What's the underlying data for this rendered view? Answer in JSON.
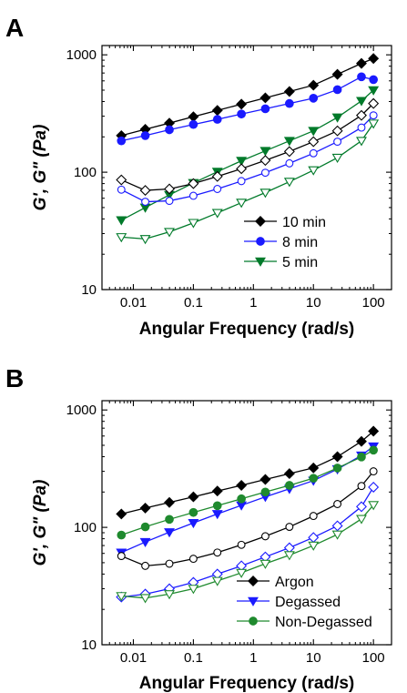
{
  "chart_data": [
    {
      "panel": "A",
      "type": "line",
      "xlabel": "Angular Frequency (rad/s)",
      "ylabel": "G', G\" (Pa)",
      "xscale": "log",
      "yscale": "log",
      "xlim": [
        0.003,
        200
      ],
      "ylim": [
        10,
        1200
      ],
      "xticks": [
        0.01,
        0.1,
        1,
        10,
        100
      ],
      "xtick_labels": [
        "0.01",
        "0.1",
        "1",
        "10",
        "100"
      ],
      "yticks": [
        10,
        100,
        1000
      ],
      "ytick_labels": [
        "10",
        "100",
        "1000"
      ],
      "grid": false,
      "legend_position": "lower-right",
      "series": [
        {
          "name": "10 min",
          "color": "#000000",
          "marker": "diamond",
          "kind": "G'",
          "filled": true,
          "x": [
            0.00631,
            0.0158,
            0.0398,
            0.1,
            0.251,
            0.631,
            1.58,
            3.98,
            10,
            25.1,
            63.1,
            100
          ],
          "y": [
            205,
            232,
            262,
            297,
            336,
            380,
            430,
            487,
            551,
            682,
            845,
            930
          ]
        },
        {
          "name": "8 min",
          "color": "#1a1aff",
          "marker": "circle",
          "kind": "G'",
          "filled": true,
          "x": [
            0.00631,
            0.0158,
            0.0398,
            0.1,
            0.251,
            0.631,
            1.58,
            3.98,
            10,
            25.1,
            63.1,
            100
          ],
          "y": [
            185,
            205,
            230,
            255,
            282,
            313,
            347,
            385,
            427,
            505,
            650,
            615
          ]
        },
        {
          "name": "5 min",
          "color": "#007a2a",
          "marker": "triangle-down",
          "kind": "G'",
          "filled": true,
          "x": [
            0.00631,
            0.0158,
            0.0398,
            0.1,
            0.251,
            0.631,
            1.58,
            3.98,
            10,
            25.1,
            63.1,
            100
          ],
          "y": [
            39,
            50,
            64,
            81,
            101,
            125,
            152,
            185,
            225,
            293,
            405,
            500
          ]
        },
        {
          "name": "",
          "color": "#000000",
          "marker": "diamond",
          "kind": "G\"",
          "filled": false,
          "x": [
            0.00631,
            0.0158,
            0.0398,
            0.1,
            0.251,
            0.631,
            1.58,
            3.98,
            10,
            25.1,
            63.1,
            100
          ],
          "y": [
            86,
            70,
            72,
            80,
            92,
            107,
            126,
            150,
            182,
            225,
            305,
            385
          ]
        },
        {
          "name": "",
          "color": "#1a1aff",
          "marker": "circle",
          "kind": "G\"",
          "filled": false,
          "x": [
            0.00631,
            0.0158,
            0.0398,
            0.1,
            0.251,
            0.631,
            1.58,
            3.98,
            10,
            25.1,
            63.1,
            100
          ],
          "y": [
            71,
            56,
            57,
            63,
            72,
            84,
            99,
            119,
            145,
            182,
            240,
            305
          ]
        },
        {
          "name": "",
          "color": "#007a2a",
          "marker": "triangle-down",
          "kind": "G\"",
          "filled": false,
          "x": [
            0.00631,
            0.0158,
            0.0398,
            0.1,
            0.251,
            0.631,
            1.58,
            3.98,
            10,
            25.1,
            63.1,
            100
          ],
          "y": [
            28,
            27,
            31,
            37,
            45,
            55,
            67,
            83,
            104,
            133,
            185,
            260
          ]
        }
      ]
    },
    {
      "panel": "B",
      "type": "line",
      "xlabel": "Angular Frequency (rad/s)",
      "ylabel": "G', G\" (Pa)",
      "xscale": "log",
      "yscale": "log",
      "xlim": [
        0.003,
        200
      ],
      "ylim": [
        10,
        1200
      ],
      "xticks": [
        0.01,
        0.1,
        1,
        10,
        100
      ],
      "xtick_labels": [
        "0.01",
        "0.1",
        "1",
        "10",
        "100"
      ],
      "yticks": [
        10,
        100,
        1000
      ],
      "ytick_labels": [
        "10",
        "100",
        "1000"
      ],
      "grid": false,
      "legend_position": "lower-right",
      "series": [
        {
          "name": "Argon",
          "color": "#000000",
          "marker": "diamond",
          "kind": "G'",
          "filled": true,
          "x": [
            0.00631,
            0.0158,
            0.0398,
            0.1,
            0.251,
            0.631,
            1.58,
            3.98,
            10,
            25.1,
            63.1,
            100
          ],
          "y": [
            130,
            146,
            163,
            182,
            204,
            228,
            256,
            287,
            321,
            400,
            540,
            660
          ]
        },
        {
          "name": "Degassed",
          "color": "#1a1aff",
          "marker": "triangle-down",
          "kind": "G'",
          "filled": true,
          "x": [
            0.00631,
            0.0158,
            0.0398,
            0.1,
            0.251,
            0.631,
            1.58,
            3.98,
            10,
            25.1,
            63.1,
            100
          ],
          "y": [
            61,
            75,
            91,
            109,
            130,
            154,
            182,
            213,
            250,
            313,
            410,
            490
          ]
        },
        {
          "name": "Non-Degassed",
          "color": "#1f8a2e",
          "marker": "circle",
          "kind": "G'",
          "filled": true,
          "x": [
            0.00631,
            0.0158,
            0.0398,
            0.1,
            0.251,
            0.631,
            1.58,
            3.98,
            10,
            25.1,
            63.1,
            100
          ],
          "y": [
            86,
            101,
            117,
            134,
            153,
            175,
            200,
            228,
            262,
            320,
            398,
            455
          ]
        },
        {
          "name": "",
          "color": "#000000",
          "marker": "circle",
          "kind": "G\"",
          "filled": false,
          "x": [
            0.00631,
            0.0158,
            0.0398,
            0.1,
            0.251,
            0.631,
            1.58,
            3.98,
            10,
            25.1,
            63.1,
            100
          ],
          "y": [
            57,
            47,
            49,
            54,
            61,
            71,
            84,
            101,
            125,
            158,
            225,
            300
          ]
        },
        {
          "name": "",
          "color": "#1a1aff",
          "marker": "diamond",
          "kind": "G\"",
          "filled": false,
          "x": [
            0.00631,
            0.0158,
            0.0398,
            0.1,
            0.251,
            0.631,
            1.58,
            3.98,
            10,
            25.1,
            63.1,
            100
          ],
          "y": [
            25.5,
            27,
            30,
            34,
            40,
            47,
            56,
            67,
            82,
            103,
            150,
            220
          ]
        },
        {
          "name": "",
          "color": "#1f8a2e",
          "marker": "triangle-down",
          "kind": "G\"",
          "filled": false,
          "x": [
            0.00631,
            0.0158,
            0.0398,
            0.1,
            0.251,
            0.631,
            1.58,
            3.98,
            10,
            25.1,
            63.1,
            100
          ],
          "y": [
            26,
            25,
            27,
            30,
            35,
            41,
            49,
            58,
            70,
            87,
            118,
            155
          ]
        }
      ]
    }
  ]
}
